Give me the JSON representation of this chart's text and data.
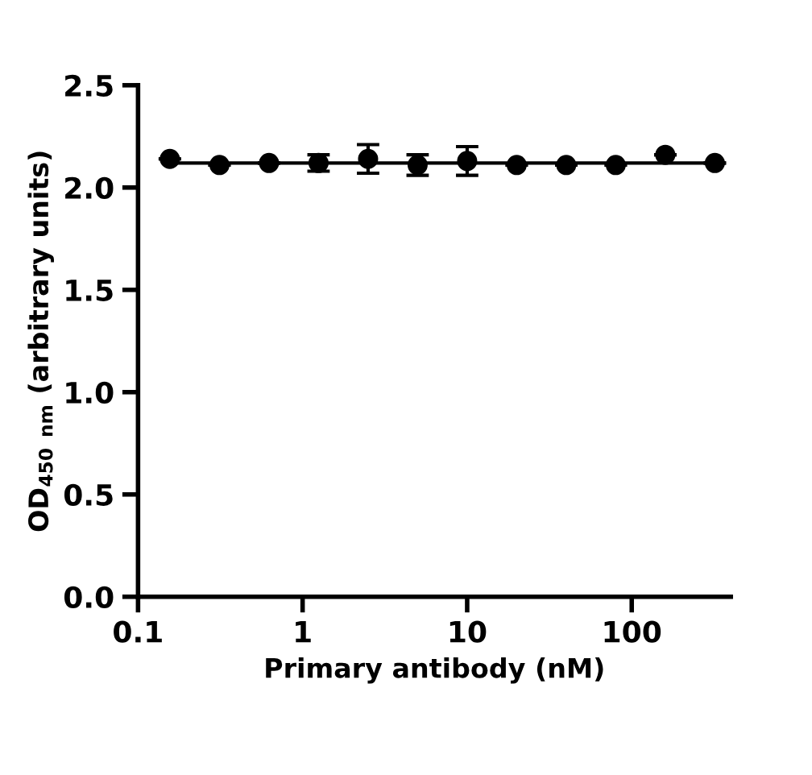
{
  "chart_data": {
    "type": "scatter",
    "xlabel": "Primary antibody (nM)",
    "ylabel": "OD$_{450}$ $_{nm}$ (arbitrary units)",
    "x": [
      0.156,
      0.3125,
      0.625,
      1.25,
      2.5,
      5,
      10,
      20,
      40,
      80,
      160,
      320
    ],
    "log": "x",
    "xlim": [
      0.1,
      400
    ],
    "xticks": [
      0.1,
      1,
      10,
      100
    ],
    "ylim": [
      0,
      2.5
    ],
    "yticks": [
      {
        "value": 0,
        "label": "0.0"
      },
      0.5,
      {
        "value": 1,
        "label": "1.0"
      },
      1.5,
      {
        "value": 2,
        "label": "2.0"
      },
      2.5
    ],
    "grid": false,
    "series": [
      {
        "marker": "circle",
        "color": "#000000",
        "values": [
          2.14,
          2.11,
          2.12,
          2.12,
          2.14,
          2.11,
          2.13,
          2.11,
          2.11,
          2.11,
          2.16,
          2.12
        ],
        "errors": [
          null,
          null,
          null,
          0.04,
          0.07,
          0.05,
          0.07,
          null,
          null,
          null,
          null,
          null
        ]
      },
      {
        "type": "line",
        "color": "#000000",
        "x": [
          0.156,
          320
        ],
        "values": [
          2.12,
          2.12
        ],
        "line_style": "solid",
        "marker": "none"
      }
    ]
  }
}
